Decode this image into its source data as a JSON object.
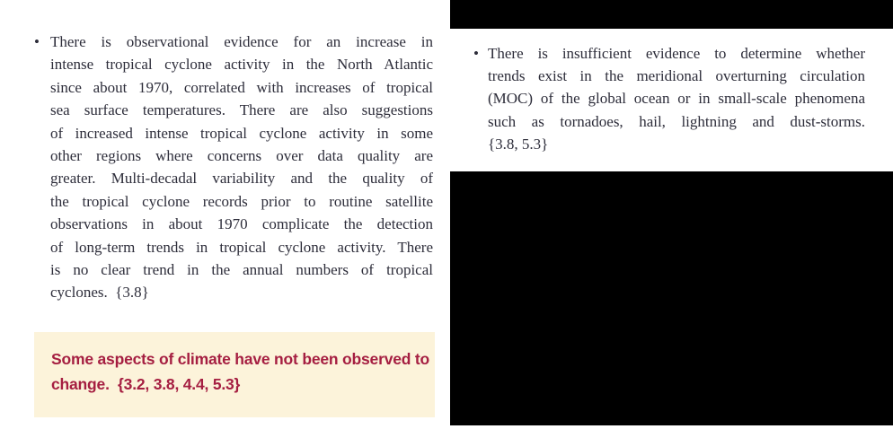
{
  "colors": {
    "page_background": "#ffffff",
    "body_text": "#2d2d3a",
    "redaction_fill": "#000000",
    "callout_background": "#fcf3da",
    "callout_text": "#a51e41"
  },
  "left_column": {
    "bullet": "•",
    "lines": [
      "There is observational evidence for an increase in",
      "intense tropical cyclone activity in the North Atlantic",
      "since about 1970, correlated with increases of tropical",
      "sea surface temperatures. There are also suggestions",
      "of increased intense tropical cyclone activity in some",
      "other regions where concerns over data quality are",
      "greater. Multi-decadal variability and the quality of",
      "the tropical cyclone records prior to routine satellite",
      "observations in about 1970 complicate the detection",
      "of long-term trends in tropical cyclone activity. There",
      "is no clear trend in the annual numbers of tropical",
      "cyclones.  {3.8}"
    ]
  },
  "callout": {
    "lines": [
      "Some aspects of climate have not been observed to",
      "change.  {3.2, 3.8, 4.4, 5.3}"
    ]
  },
  "right_column": {
    "bullet": "•",
    "lines": [
      "There is insufficient evidence to determine whether",
      "trends exist in the meridional overturning circulation",
      "(MOC) of the global ocean or in small-scale phenomena",
      "such as tornadoes, hail, lightning and dust-storms.",
      "{3.8, 5.3}"
    ]
  }
}
